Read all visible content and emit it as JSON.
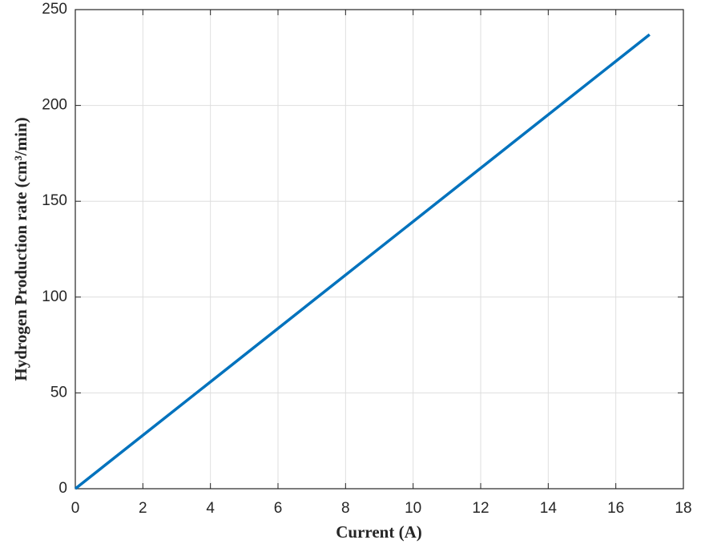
{
  "chart_data": {
    "type": "line",
    "x_label": "Current (A)",
    "y_label": "Hydrogen Production rate (cm³/min)",
    "x": [
      0,
      17
    ],
    "series": [
      {
        "color": "#0072bd",
        "values": [
          0,
          237
        ]
      }
    ],
    "xlim": [
      0,
      18
    ],
    "xticks": [
      0,
      2,
      4,
      6,
      8,
      10,
      12,
      14,
      16,
      18
    ],
    "ylim": [
      0,
      250
    ],
    "yticks": [
      0,
      50,
      100,
      150,
      200,
      250
    ],
    "grid": true
  }
}
